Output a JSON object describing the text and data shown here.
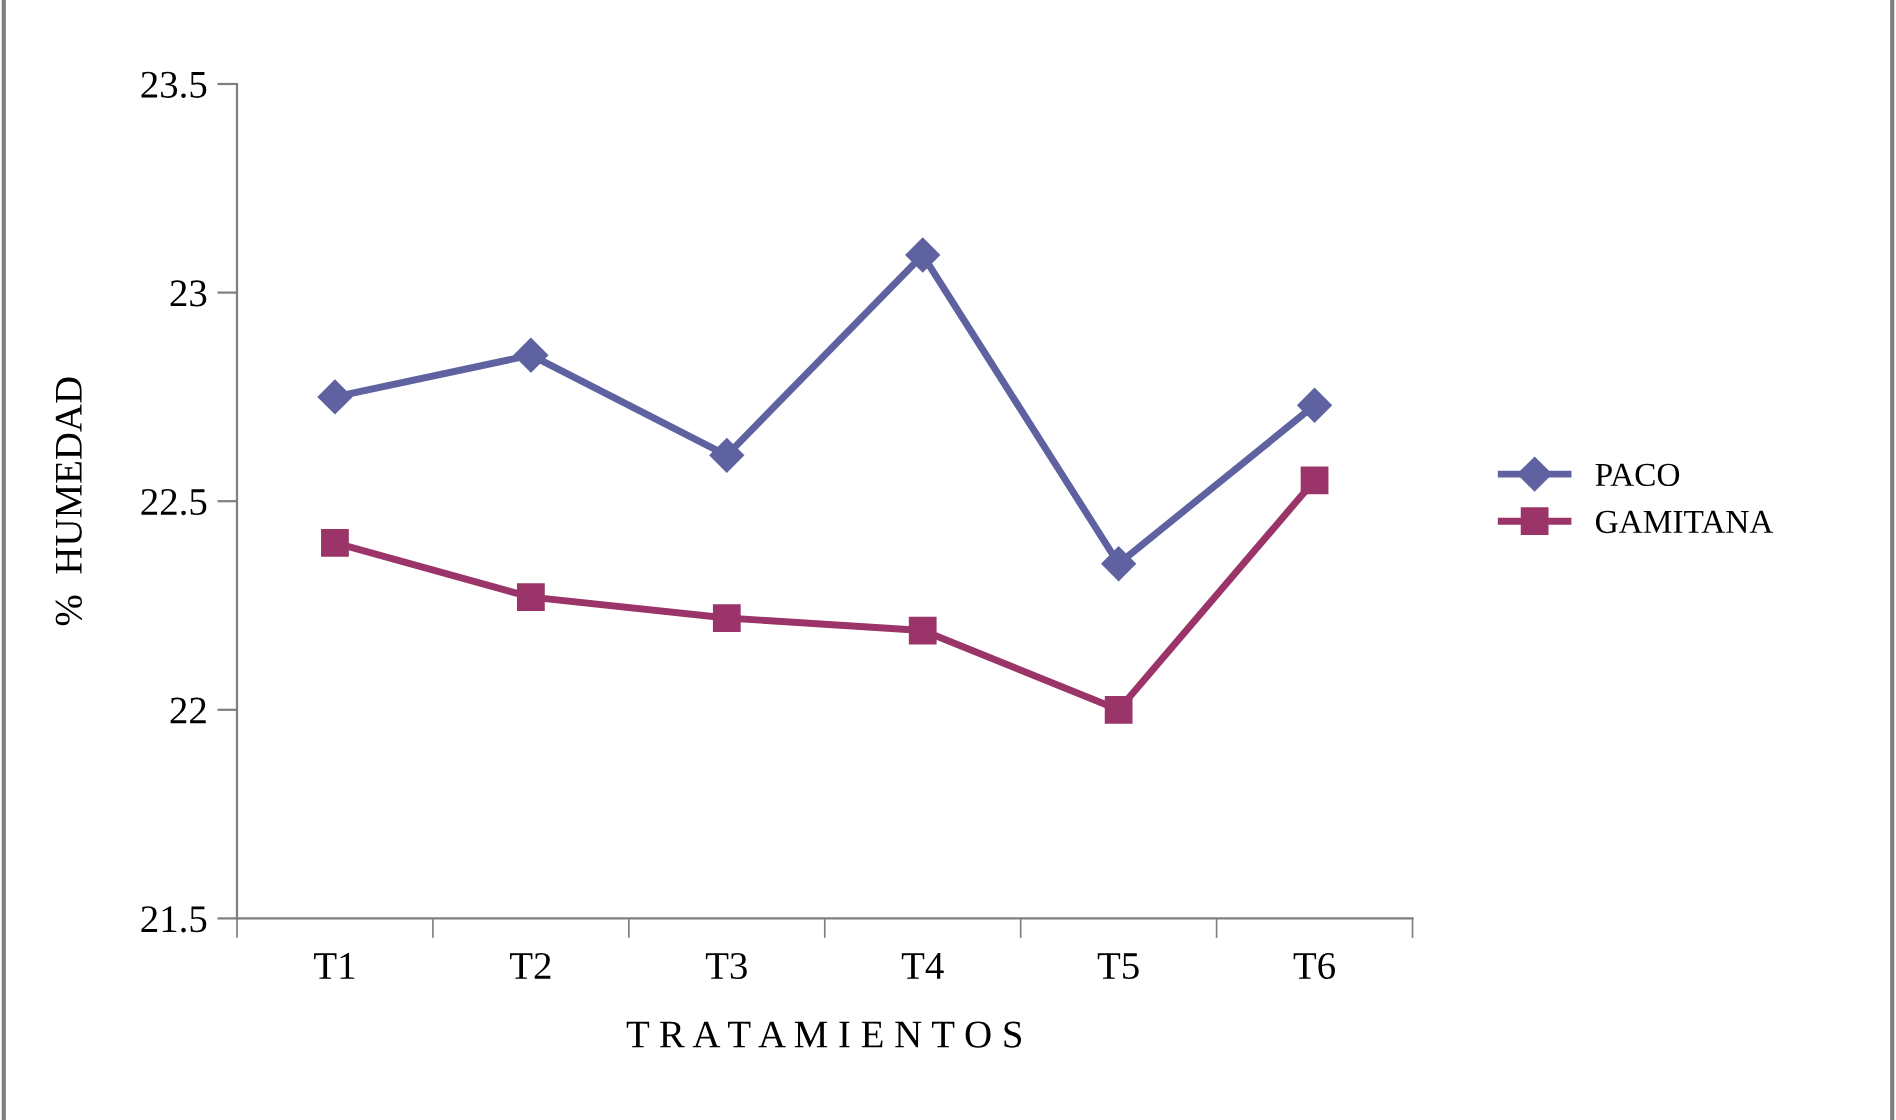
{
  "chart_data": {
    "type": "line",
    "xlabel": "T R A T A M I E N T O S",
    "ylabel": "%  HUMEDAD",
    "categories": [
      "T1",
      "T2",
      "T3",
      "T4",
      "T5",
      "T6"
    ],
    "series": [
      {
        "name": "PACO",
        "color": "#5f62a0",
        "marker": "diamond",
        "values": [
          22.75,
          22.85,
          22.61,
          23.09,
          22.35,
          22.73
        ]
      },
      {
        "name": "GAMITANA",
        "color": "#9b3468",
        "marker": "square",
        "values": [
          22.4,
          22.27,
          22.22,
          22.19,
          22.0,
          22.55
        ]
      }
    ],
    "ylim": [
      21.5,
      23.5
    ],
    "yticks": [
      21.5,
      22,
      22.5,
      23,
      23.5
    ],
    "grid": false,
    "legend": "right"
  }
}
